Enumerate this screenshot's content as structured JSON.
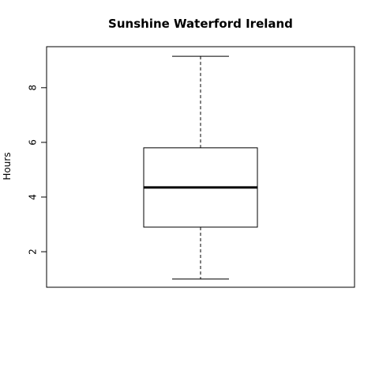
{
  "chart_data": {
    "type": "boxplot",
    "title": "Sunshine Waterford Ireland",
    "xlabel": "",
    "ylabel": "Hours",
    "ylim": [
      0.7,
      9.5
    ],
    "yticks": [
      2,
      4,
      6,
      8
    ],
    "grid": false,
    "box": {
      "min": 1.0,
      "q1": 2.9,
      "median": 4.35,
      "q3": 5.8,
      "max": 9.15
    }
  }
}
